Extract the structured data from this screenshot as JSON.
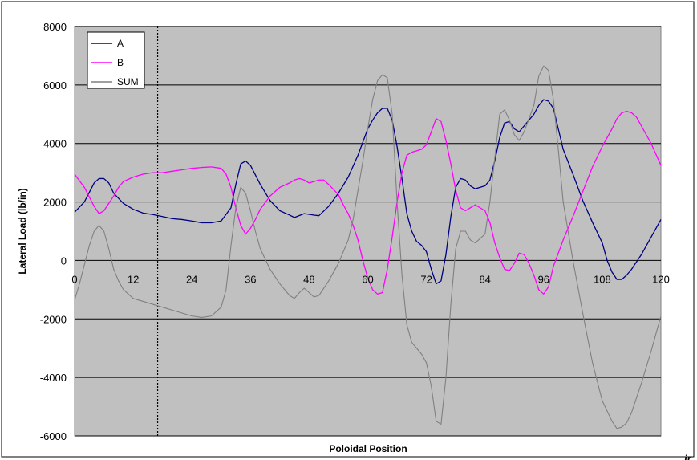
{
  "chart_data": {
    "type": "line",
    "xlabel": "Poloidal Position",
    "ylabel": "Lateral Load (lb/in)",
    "xlim": [
      0,
      120
    ],
    "ylim": [
      -6000,
      8000
    ],
    "xticks": [
      "0",
      "12",
      "24",
      "36",
      "48",
      "60",
      "72",
      "84",
      "96",
      "108",
      "120"
    ],
    "yticks": [
      "-6000",
      "-4000",
      "-2000",
      "0",
      "2000",
      "4000",
      "6000",
      "8000"
    ],
    "grid": "horizontal",
    "legend_position": "top-left",
    "reference_line_x": 17,
    "background_color": "#c0c0c0",
    "series": [
      {
        "name": "A",
        "color": "#000080",
        "points": [
          [
            0,
            1650
          ],
          [
            2,
            2000
          ],
          [
            4,
            2650
          ],
          [
            5,
            2800
          ],
          [
            6,
            2800
          ],
          [
            7,
            2650
          ],
          [
            8,
            2300
          ],
          [
            10,
            1950
          ],
          [
            12,
            1750
          ],
          [
            14,
            1620
          ],
          [
            16,
            1570
          ],
          [
            18,
            1500
          ],
          [
            20,
            1430
          ],
          [
            22,
            1400
          ],
          [
            24,
            1350
          ],
          [
            26,
            1290
          ],
          [
            28,
            1290
          ],
          [
            30,
            1350
          ],
          [
            32,
            1800
          ],
          [
            33,
            2600
          ],
          [
            34,
            3300
          ],
          [
            35,
            3400
          ],
          [
            36,
            3250
          ],
          [
            38,
            2600
          ],
          [
            40,
            2050
          ],
          [
            42,
            1700
          ],
          [
            44,
            1550
          ],
          [
            45,
            1470
          ],
          [
            47,
            1600
          ],
          [
            49,
            1550
          ],
          [
            50,
            1530
          ],
          [
            52,
            1850
          ],
          [
            54,
            2300
          ],
          [
            56,
            2850
          ],
          [
            58,
            3600
          ],
          [
            60,
            4500
          ],
          [
            61,
            4800
          ],
          [
            62,
            5050
          ],
          [
            63,
            5200
          ],
          [
            64,
            5200
          ],
          [
            65,
            4800
          ],
          [
            66,
            3900
          ],
          [
            67,
            2800
          ],
          [
            68,
            1600
          ],
          [
            69,
            1000
          ],
          [
            70,
            650
          ],
          [
            71,
            520
          ],
          [
            72,
            300
          ],
          [
            73,
            -300
          ],
          [
            74,
            -800
          ],
          [
            75,
            -700
          ],
          [
            76,
            200
          ],
          [
            77,
            1500
          ],
          [
            78,
            2500
          ],
          [
            79,
            2800
          ],
          [
            80,
            2750
          ],
          [
            81,
            2550
          ],
          [
            82,
            2450
          ],
          [
            84,
            2550
          ],
          [
            85,
            2750
          ],
          [
            86,
            3400
          ],
          [
            87,
            4200
          ],
          [
            88,
            4700
          ],
          [
            89,
            4750
          ],
          [
            90,
            4500
          ],
          [
            91,
            4400
          ],
          [
            92,
            4600
          ],
          [
            94,
            5000
          ],
          [
            95,
            5300
          ],
          [
            96,
            5500
          ],
          [
            97,
            5450
          ],
          [
            98,
            5200
          ],
          [
            99,
            4500
          ],
          [
            100,
            3800
          ],
          [
            102,
            2950
          ],
          [
            104,
            2050
          ],
          [
            106,
            1300
          ],
          [
            108,
            600
          ],
          [
            109,
            0
          ],
          [
            110,
            -400
          ],
          [
            111,
            -650
          ],
          [
            112,
            -650
          ],
          [
            113,
            -500
          ],
          [
            114,
            -300
          ],
          [
            116,
            200
          ],
          [
            118,
            800
          ],
          [
            120,
            1400
          ]
        ]
      },
      {
        "name": "B",
        "color": "#ff00ff",
        "points": [
          [
            0,
            2950
          ],
          [
            2,
            2500
          ],
          [
            4,
            1850
          ],
          [
            5,
            1600
          ],
          [
            6,
            1700
          ],
          [
            8,
            2200
          ],
          [
            9,
            2500
          ],
          [
            10,
            2700
          ],
          [
            12,
            2850
          ],
          [
            14,
            2950
          ],
          [
            16,
            3000
          ],
          [
            18,
            3000
          ],
          [
            20,
            3050
          ],
          [
            22,
            3100
          ],
          [
            24,
            3150
          ],
          [
            26,
            3180
          ],
          [
            28,
            3200
          ],
          [
            30,
            3150
          ],
          [
            31,
            2950
          ],
          [
            32,
            2500
          ],
          [
            33,
            1800
          ],
          [
            34,
            1200
          ],
          [
            35,
            900
          ],
          [
            36,
            1100
          ],
          [
            37,
            1400
          ],
          [
            38,
            1750
          ],
          [
            40,
            2200
          ],
          [
            42,
            2500
          ],
          [
            44,
            2650
          ],
          [
            45,
            2750
          ],
          [
            46,
            2800
          ],
          [
            47,
            2750
          ],
          [
            48,
            2650
          ],
          [
            49,
            2700
          ],
          [
            50,
            2750
          ],
          [
            51,
            2750
          ],
          [
            52,
            2600
          ],
          [
            54,
            2250
          ],
          [
            55,
            1900
          ],
          [
            56,
            1600
          ],
          [
            57,
            1200
          ],
          [
            58,
            700
          ],
          [
            59,
            0
          ],
          [
            60,
            -600
          ],
          [
            61,
            -1000
          ],
          [
            62,
            -1150
          ],
          [
            63,
            -1100
          ],
          [
            64,
            -300
          ],
          [
            65,
            800
          ],
          [
            66,
            2000
          ],
          [
            67,
            3000
          ],
          [
            68,
            3600
          ],
          [
            69,
            3700
          ],
          [
            70,
            3750
          ],
          [
            71,
            3800
          ],
          [
            72,
            3950
          ],
          [
            73,
            4400
          ],
          [
            74,
            4850
          ],
          [
            75,
            4750
          ],
          [
            76,
            4100
          ],
          [
            77,
            3300
          ],
          [
            78,
            2400
          ],
          [
            79,
            1800
          ],
          [
            80,
            1700
          ],
          [
            81,
            1800
          ],
          [
            82,
            1900
          ],
          [
            84,
            1700
          ],
          [
            85,
            1300
          ],
          [
            86,
            600
          ],
          [
            87,
            100
          ],
          [
            88,
            -300
          ],
          [
            89,
            -350
          ],
          [
            90,
            -100
          ],
          [
            91,
            250
          ],
          [
            92,
            200
          ],
          [
            93,
            -100
          ],
          [
            94,
            -500
          ],
          [
            95,
            -1000
          ],
          [
            96,
            -1150
          ],
          [
            97,
            -900
          ],
          [
            98,
            -200
          ],
          [
            100,
            700
          ],
          [
            102,
            1500
          ],
          [
            104,
            2350
          ],
          [
            106,
            3200
          ],
          [
            108,
            3900
          ],
          [
            110,
            4500
          ],
          [
            111,
            4850
          ],
          [
            112,
            5050
          ],
          [
            113,
            5100
          ],
          [
            114,
            5050
          ],
          [
            115,
            4900
          ],
          [
            116,
            4600
          ],
          [
            118,
            4000
          ],
          [
            120,
            3250
          ]
        ]
      },
      {
        "name": "SUM",
        "color": "#808080",
        "points": [
          [
            0,
            -1350
          ],
          [
            1,
            -800
          ],
          [
            2,
            -150
          ],
          [
            3,
            500
          ],
          [
            4,
            1000
          ],
          [
            5,
            1200
          ],
          [
            6,
            1000
          ],
          [
            7,
            400
          ],
          [
            8,
            -300
          ],
          [
            9,
            -700
          ],
          [
            10,
            -1000
          ],
          [
            12,
            -1300
          ],
          [
            14,
            -1400
          ],
          [
            16,
            -1500
          ],
          [
            18,
            -1600
          ],
          [
            20,
            -1700
          ],
          [
            22,
            -1800
          ],
          [
            24,
            -1900
          ],
          [
            26,
            -1950
          ],
          [
            28,
            -1900
          ],
          [
            30,
            -1600
          ],
          [
            31,
            -1000
          ],
          [
            32,
            500
          ],
          [
            33,
            1800
          ],
          [
            34,
            2500
          ],
          [
            35,
            2300
          ],
          [
            36,
            1700
          ],
          [
            37,
            1000
          ],
          [
            38,
            400
          ],
          [
            40,
            -300
          ],
          [
            42,
            -800
          ],
          [
            44,
            -1200
          ],
          [
            45,
            -1300
          ],
          [
            46,
            -1100
          ],
          [
            47,
            -950
          ],
          [
            48,
            -1100
          ],
          [
            49,
            -1250
          ],
          [
            50,
            -1200
          ],
          [
            52,
            -700
          ],
          [
            54,
            -100
          ],
          [
            56,
            700
          ],
          [
            57,
            1400
          ],
          [
            58,
            2400
          ],
          [
            59,
            3400
          ],
          [
            60,
            4500
          ],
          [
            61,
            5500
          ],
          [
            62,
            6150
          ],
          [
            63,
            6350
          ],
          [
            64,
            6250
          ],
          [
            65,
            5000
          ],
          [
            66,
            2000
          ],
          [
            67,
            -500
          ],
          [
            68,
            -2200
          ],
          [
            69,
            -2800
          ],
          [
            70,
            -3000
          ],
          [
            71,
            -3200
          ],
          [
            72,
            -3500
          ],
          [
            73,
            -4300
          ],
          [
            74,
            -5500
          ],
          [
            75,
            -5600
          ],
          [
            76,
            -4000
          ],
          [
            77,
            -1500
          ],
          [
            78,
            400
          ],
          [
            79,
            1000
          ],
          [
            80,
            1000
          ],
          [
            81,
            700
          ],
          [
            82,
            600
          ],
          [
            84,
            900
          ],
          [
            85,
            2000
          ],
          [
            86,
            3500
          ],
          [
            87,
            5000
          ],
          [
            88,
            5150
          ],
          [
            89,
            4800
          ],
          [
            90,
            4300
          ],
          [
            91,
            4100
          ],
          [
            92,
            4400
          ],
          [
            94,
            5300
          ],
          [
            95,
            6300
          ],
          [
            96,
            6650
          ],
          [
            97,
            6500
          ],
          [
            98,
            5500
          ],
          [
            99,
            3800
          ],
          [
            100,
            2000
          ],
          [
            102,
            0
          ],
          [
            104,
            -1800
          ],
          [
            106,
            -3500
          ],
          [
            108,
            -4800
          ],
          [
            110,
            -5500
          ],
          [
            111,
            -5750
          ],
          [
            112,
            -5700
          ],
          [
            113,
            -5550
          ],
          [
            114,
            -5200
          ],
          [
            116,
            -4200
          ],
          [
            118,
            -3100
          ],
          [
            120,
            -1900
          ]
        ]
      }
    ]
  },
  "stray_text": "ir"
}
